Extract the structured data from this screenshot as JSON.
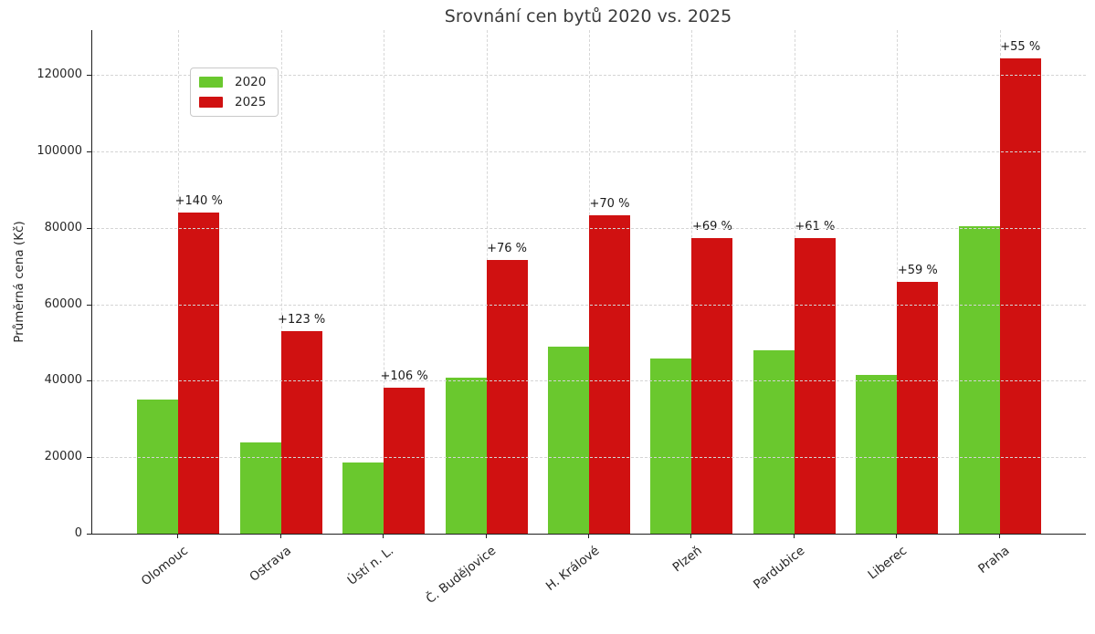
{
  "chart": {
    "title": "Srovnání cen bytů 2020 vs. 2025",
    "ylabel": "Průměrná cena (Kč)"
  },
  "chart_data": {
    "type": "bar",
    "title": "Srovnání cen bytů 2020 vs. 2025",
    "xlabel": "",
    "ylabel": "Průměrná cena (Kč)",
    "categories": [
      "Olomouc",
      "Ostrava",
      "Ústí n. L.",
      "Č. Budějovice",
      "H. Králové",
      "Plzeň",
      "Pardubice",
      "Liberec",
      "Praha"
    ],
    "series": [
      {
        "name": "2020",
        "color": "#6ac82e",
        "values": [
          35000,
          23800,
          18500,
          40700,
          49000,
          45800,
          47900,
          41400,
          80300
        ]
      },
      {
        "name": "2025",
        "color": "#d01111",
        "values": [
          84000,
          53000,
          38100,
          71600,
          83300,
          77400,
          77200,
          65800,
          124400
        ]
      }
    ],
    "annotations": [
      "+140 %",
      "+123 %",
      "+106 %",
      "+76 %",
      "+70 %",
      "+69 %",
      "+61 %",
      "+59 %",
      "+55 %"
    ],
    "annotations_on_series": "2025",
    "ylim": [
      0,
      131700
    ],
    "yticks": [
      0,
      20000,
      40000,
      60000,
      80000,
      100000,
      120000
    ],
    "grid": "dashed horizontal gridlines at yticks and vertical gridlines at category centers, gridlines drawn over bars",
    "legend_position": "upper left",
    "colors": {
      "bar_2020": "#6ac82e",
      "bar_2025": "#d01111",
      "grid": "#d4d4d4",
      "spine": "#1f1f1f",
      "title_text": "#3b3b3b",
      "tick_text": "#262626",
      "background": "#ffffff"
    }
  }
}
